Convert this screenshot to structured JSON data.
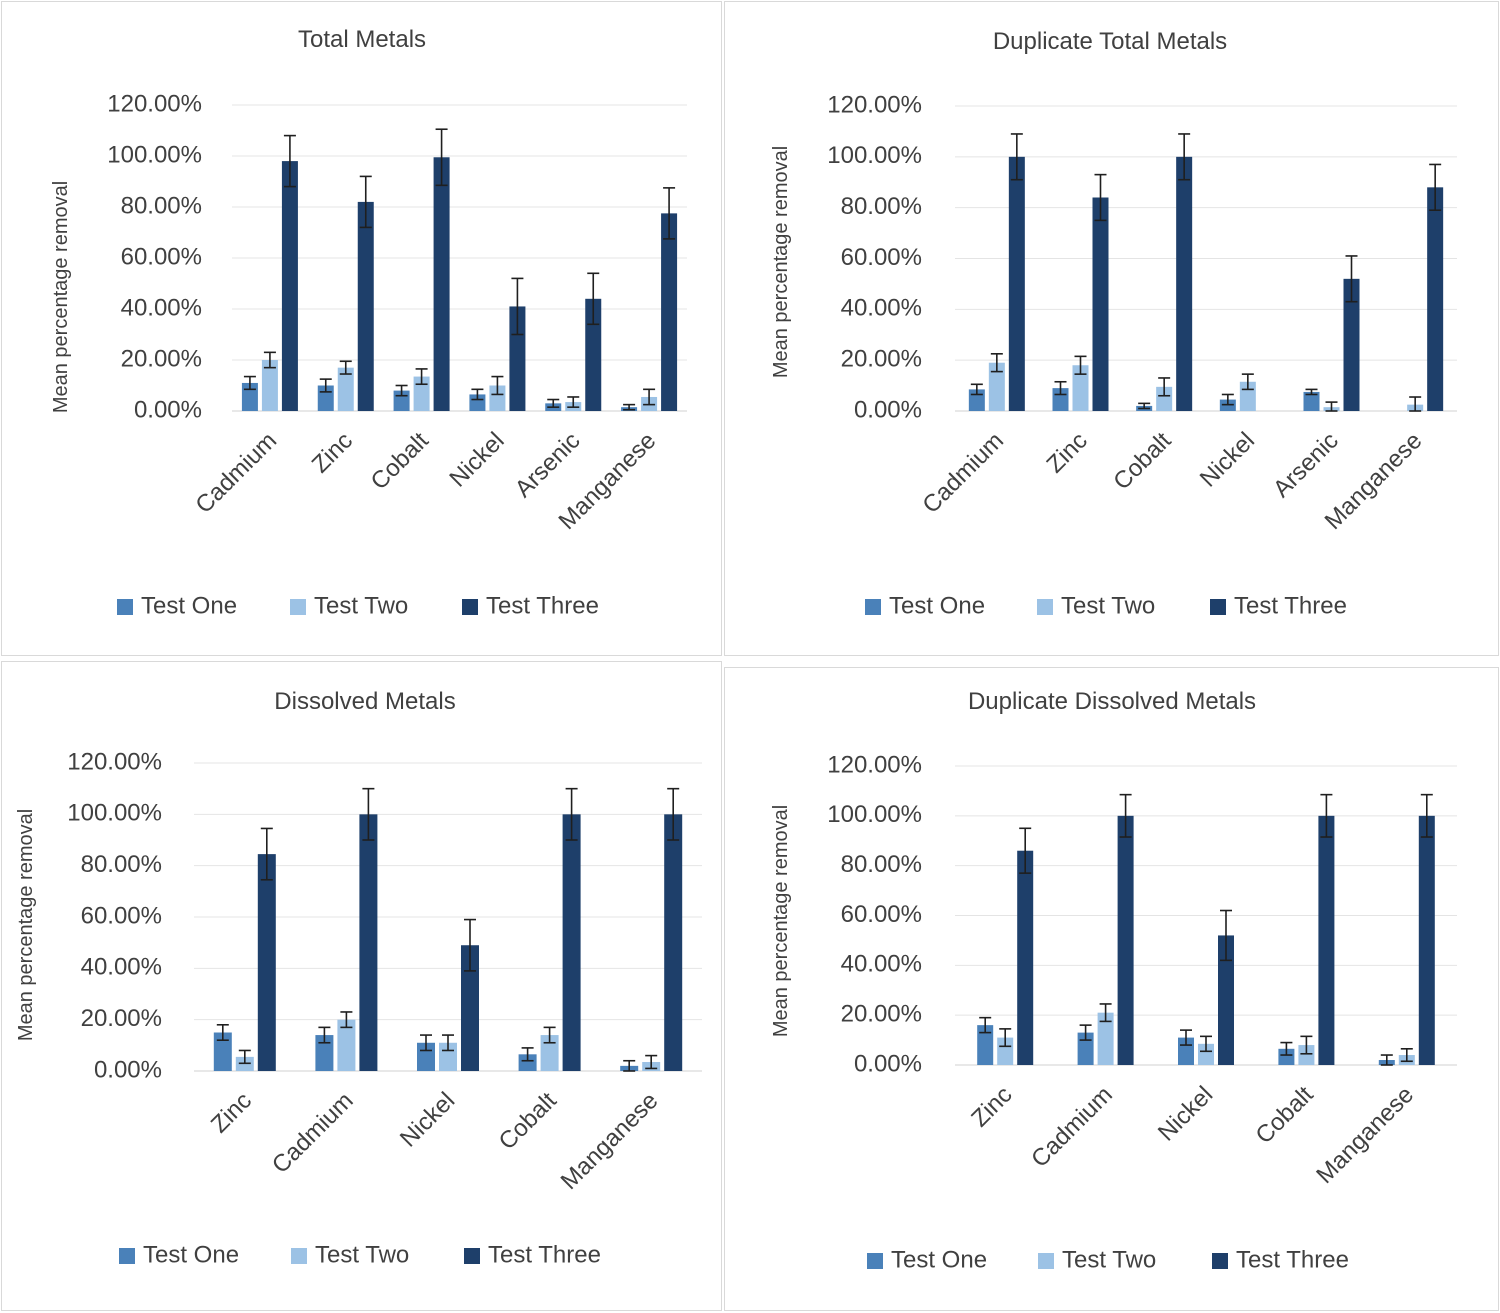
{
  "colors": {
    "Test One": "#4a81b9",
    "Test Two": "#9cc2e5",
    "Test Three": "#1e3f6a"
  },
  "chart_data": [
    {
      "type": "bar",
      "title": "Total Metals",
      "ylabel": "Mean percentage removal",
      "xlabel": "",
      "ylim": [
        0,
        1.2
      ],
      "ytick_labels": [
        "0.00%",
        "20.00%",
        "40.00%",
        "60.00%",
        "80.00%",
        "100.00%",
        "120.00%"
      ],
      "categories": [
        "Cadmium",
        "Zinc",
        "Cobalt",
        "Nickel",
        "Arsenic",
        "Manganese"
      ],
      "legend": [
        "Test One",
        "Test Two",
        "Test Three"
      ],
      "legend_position": "bottom",
      "series": [
        {
          "name": "Test One",
          "values": [
            0.11,
            0.1,
            0.08,
            0.065,
            0.03,
            0.015
          ],
          "errors": [
            0.025,
            0.025,
            0.02,
            0.02,
            0.015,
            0.01
          ]
        },
        {
          "name": "Test Two",
          "values": [
            0.2,
            0.17,
            0.135,
            0.1,
            0.035,
            0.055
          ],
          "errors": [
            0.03,
            0.025,
            0.03,
            0.035,
            0.02,
            0.03
          ]
        },
        {
          "name": "Test Three",
          "values": [
            0.98,
            0.82,
            0.995,
            0.41,
            0.44,
            0.775
          ],
          "errors": [
            0.1,
            0.1,
            0.11,
            0.11,
            0.1,
            0.1
          ]
        }
      ]
    },
    {
      "type": "bar",
      "title": "Duplicate Total Metals",
      "ylabel": "Mean percentage removal",
      "xlabel": "",
      "ylim": [
        0,
        1.2
      ],
      "ytick_labels": [
        "0.00%",
        "20.00%",
        "40.00%",
        "60.00%",
        "80.00%",
        "100.00%",
        "120.00%"
      ],
      "categories": [
        "Cadmium",
        "Zinc",
        "Cobalt",
        "Nickel",
        "Arsenic",
        "Manganese"
      ],
      "legend": [
        "Test One",
        "Test Two",
        "Test Three"
      ],
      "legend_position": "bottom",
      "series": [
        {
          "name": "Test One",
          "values": [
            0.085,
            0.09,
            0.02,
            0.045,
            0.075,
            0.0
          ],
          "errors": [
            0.02,
            0.025,
            0.01,
            0.02,
            0.01,
            0.0
          ]
        },
        {
          "name": "Test Two",
          "values": [
            0.19,
            0.18,
            0.095,
            0.115,
            0.015,
            0.025
          ],
          "errors": [
            0.035,
            0.035,
            0.035,
            0.03,
            0.02,
            0.03
          ]
        },
        {
          "name": "Test Three",
          "values": [
            1.0,
            0.84,
            1.0,
            0.0,
            0.52,
            0.88
          ],
          "errors": [
            0.09,
            0.09,
            0.09,
            0.0,
            0.09,
            0.09
          ]
        }
      ]
    },
    {
      "type": "bar",
      "title": "Dissolved Metals",
      "ylabel": "Mean percentage removal",
      "xlabel": "",
      "ylim": [
        0,
        1.2
      ],
      "ytick_labels": [
        "0.00%",
        "20.00%",
        "40.00%",
        "60.00%",
        "80.00%",
        "100.00%",
        "120.00%"
      ],
      "categories": [
        "Zinc",
        "Cadmium",
        "Nickel",
        "Cobalt",
        "Manganese"
      ],
      "legend": [
        "Test One",
        "Test Two",
        "Test Three"
      ],
      "legend_position": "bottom",
      "series": [
        {
          "name": "Test One",
          "values": [
            0.15,
            0.14,
            0.11,
            0.065,
            0.02
          ],
          "errors": [
            0.03,
            0.03,
            0.03,
            0.025,
            0.02
          ]
        },
        {
          "name": "Test Two",
          "values": [
            0.055,
            0.2,
            0.11,
            0.14,
            0.035
          ],
          "errors": [
            0.025,
            0.03,
            0.03,
            0.03,
            0.025
          ]
        },
        {
          "name": "Test Three",
          "values": [
            0.845,
            1.0,
            0.49,
            1.0,
            1.0
          ],
          "errors": [
            0.1,
            0.1,
            0.1,
            0.1,
            0.1
          ]
        }
      ]
    },
    {
      "type": "bar",
      "title": "Duplicate Dissolved Metals",
      "ylabel": "Mean percentage removal",
      "xlabel": "",
      "ylim": [
        0,
        1.2
      ],
      "ytick_labels": [
        "0.00%",
        "20.00%",
        "40.00%",
        "60.00%",
        "80.00%",
        "100.00%",
        "120.00%"
      ],
      "categories": [
        "Zinc",
        "Cadmium",
        "Nickel",
        "Cobalt",
        "Manganese"
      ],
      "legend": [
        "Test One",
        "Test Two",
        "Test Three"
      ],
      "legend_position": "bottom",
      "series": [
        {
          "name": "Test One",
          "values": [
            0.16,
            0.13,
            0.11,
            0.065,
            0.02
          ],
          "errors": [
            0.03,
            0.03,
            0.03,
            0.025,
            0.02
          ]
        },
        {
          "name": "Test Two",
          "values": [
            0.11,
            0.21,
            0.085,
            0.08,
            0.04
          ],
          "errors": [
            0.035,
            0.035,
            0.03,
            0.035,
            0.025
          ]
        },
        {
          "name": "Test Three",
          "values": [
            0.86,
            1.0,
            0.52,
            1.0,
            1.0
          ],
          "errors": [
            0.09,
            0.085,
            0.1,
            0.085,
            0.085
          ]
        }
      ]
    }
  ]
}
